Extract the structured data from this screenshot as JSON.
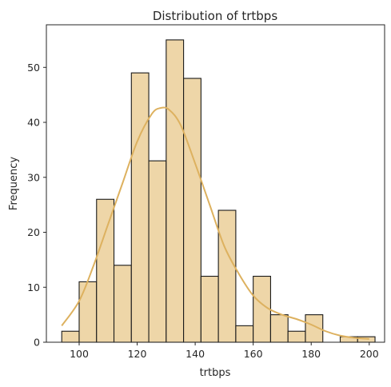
{
  "chart_data": {
    "type": "bar",
    "title": "Distribution of trtbps",
    "xlabel": "trtbps",
    "ylabel": "Frequency",
    "xlim": [
      88.7,
      205.3
    ],
    "ylim": [
      0,
      57.75
    ],
    "xticks": [
      100,
      120,
      140,
      160,
      180,
      200
    ],
    "yticks": [
      0,
      10,
      20,
      30,
      40,
      50
    ],
    "bin_edges": [
      94,
      100,
      106,
      112,
      118,
      124,
      130,
      136,
      142,
      148,
      154,
      160,
      166,
      172,
      178,
      184,
      190,
      196,
      202
    ],
    "counts": [
      2,
      11,
      26,
      14,
      49,
      33,
      55,
      48,
      12,
      24,
      3,
      12,
      5,
      2,
      5,
      0,
      1,
      1
    ],
    "kde_x": [
      94,
      100,
      105,
      110,
      115,
      120,
      125,
      128,
      131,
      135,
      140,
      145,
      150,
      155,
      160,
      165,
      170,
      175,
      180,
      185,
      190,
      195,
      200
    ],
    "kde_y": [
      3,
      7.5,
      14,
      21.5,
      29,
      36.5,
      41.5,
      42.6,
      42.3,
      39.5,
      32.5,
      25,
      17.5,
      12.5,
      8.5,
      6.2,
      5,
      4.2,
      3.2,
      2,
      1.2,
      0.8,
      0.6
    ],
    "bar_color": "#eed6a8",
    "bar_edge": "#1a1a1a",
    "kde_color": "#ddb15f",
    "grid": false,
    "legend": false
  }
}
